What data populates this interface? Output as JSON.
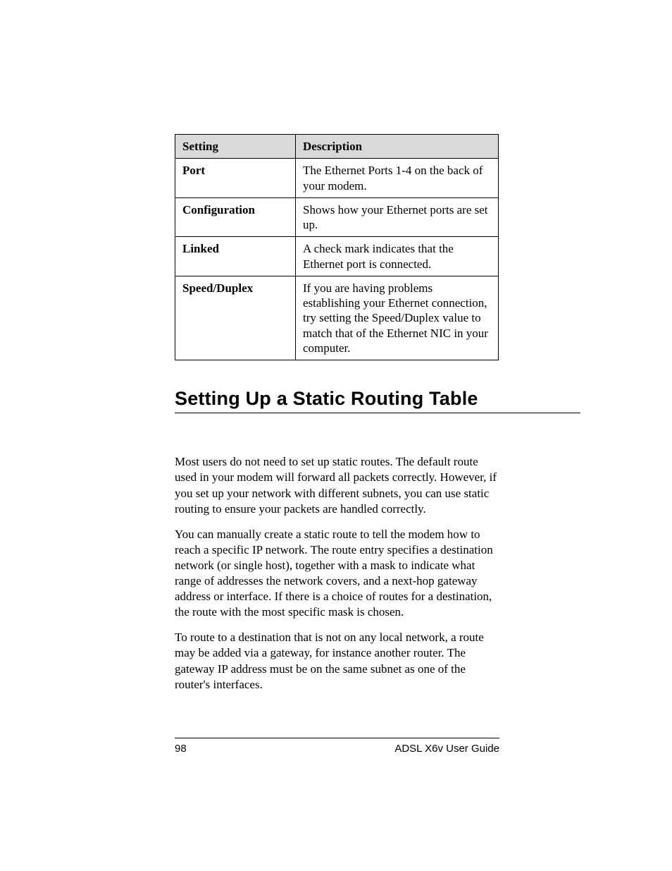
{
  "table": {
    "header": {
      "c1": "Setting",
      "c2": "Description"
    },
    "rows": [
      {
        "c1": "Port",
        "c2": "The Ethernet Ports 1-4 on the back of your modem."
      },
      {
        "c1": "Configuration",
        "c2": "Shows how your Ethernet ports are set up."
      },
      {
        "c1": "Linked",
        "c2": "A check mark indicates that the Ethernet port is connected."
      },
      {
        "c1": "Speed/Duplex",
        "c2": "If you are having problems establishing your Ethernet connection, try setting the Speed/Duplex value to match that of the Ethernet NIC in your computer."
      }
    ],
    "header_bg": "#d9d9d9",
    "border_color": "#000000",
    "font_size_pt": 12
  },
  "heading": "Setting Up a Static Routing Table",
  "heading_style": {
    "font_size_pt": 20,
    "font_weight": 900,
    "underline_color": "#000000"
  },
  "paragraphs": [
    "Most users do not need to set up static routes. The default route used in your modem will forward all packets correctly. However, if you set up your network with different subnets, you can use static routing to ensure your packets are handled correctly.",
    "You can manually create a static route to tell the modem how to reach a specific IP network. The route entry specifies a destination network (or single host), together with a mask to indicate what range of addresses the network covers, and a next-hop gateway address or interface. If there is a choice of routes for a destination, the route with the most specific mask is chosen.",
    "To route to a destination that is not on any local network, a route may be added via a gateway, for instance another router. The gateway IP address must be on the same subnet as one of the router's interfaces."
  ],
  "footer": {
    "page_number": "98",
    "book_title": "ADSL X6v User Guide"
  },
  "colors": {
    "background": "#ffffff",
    "text": "#000000"
  }
}
